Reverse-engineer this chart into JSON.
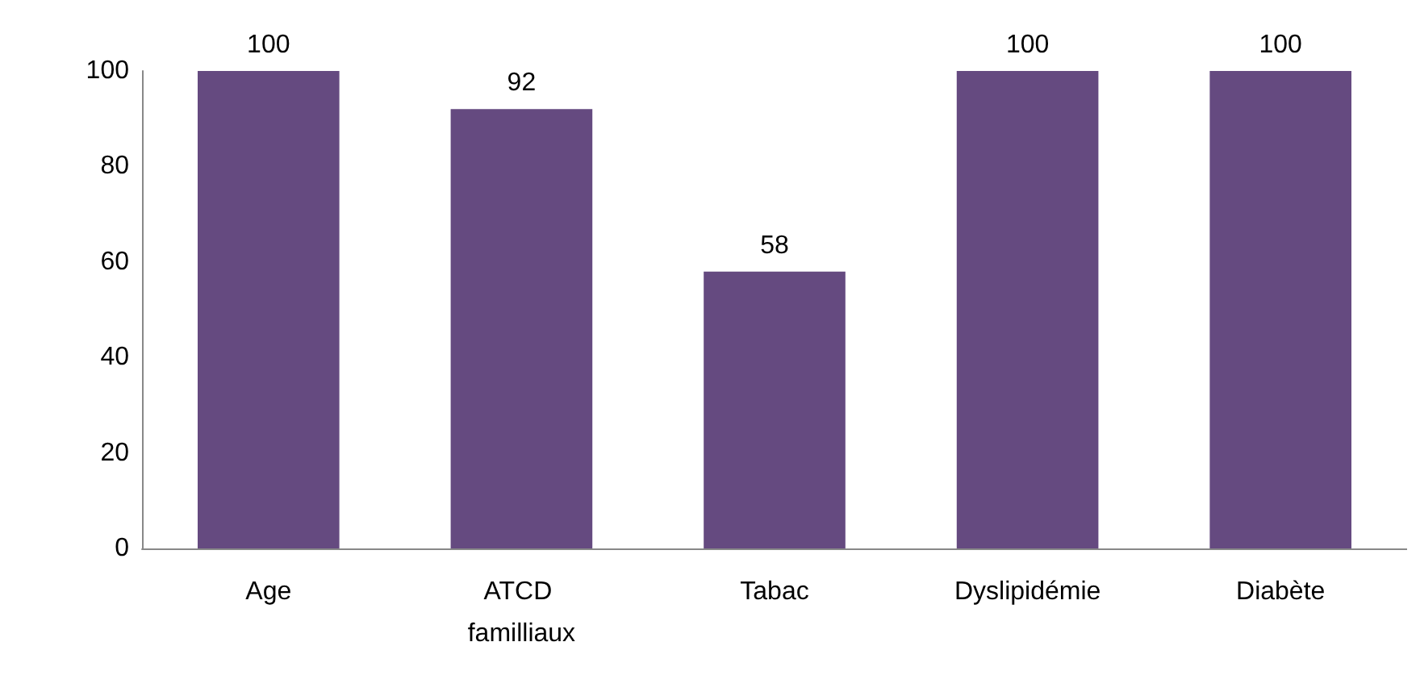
{
  "chart_data": {
    "type": "bar",
    "categories": [
      "Age",
      "ATCD familliaux",
      "Tabac",
      "Dyslipidémie",
      "Diabète"
    ],
    "values": [
      100,
      92,
      58,
      100,
      100
    ],
    "color": "#654a80",
    "ylim": [
      0,
      100
    ],
    "yticks": [
      0,
      20,
      40,
      60,
      80,
      100
    ],
    "grid": false,
    "data_labels": true
  }
}
